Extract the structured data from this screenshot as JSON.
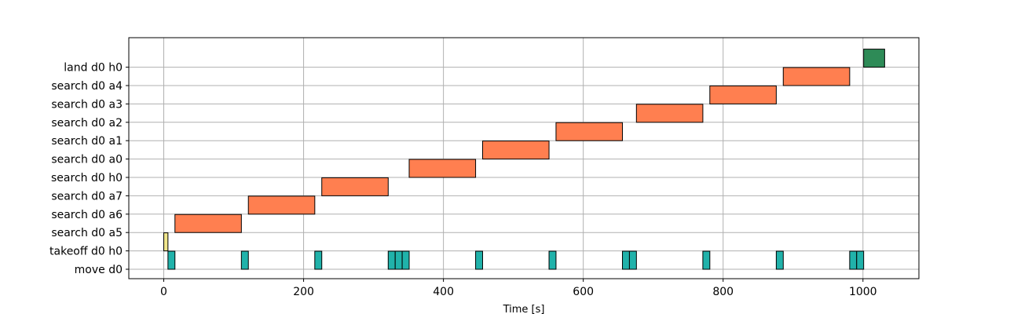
{
  "chart_data": {
    "type": "gantt",
    "title": "",
    "xlabel": "Time [s]",
    "ylabel": "",
    "xlim": [
      -50,
      1080
    ],
    "grid": true,
    "xticks": [
      0,
      200,
      400,
      600,
      800,
      1000
    ],
    "xtick_labels": [
      "0",
      "200",
      "400",
      "600",
      "800",
      "1000"
    ],
    "rows": [
      "move d0",
      "takeoff d0 h0",
      "search d0 a5",
      "search d0 a6",
      "search d0 a7",
      "search d0 h0",
      "search d0 a0",
      "search d0 a1",
      "search d0 a2",
      "search d0 a3",
      "search d0 a4",
      "land d0 h0"
    ],
    "colors": {
      "move": "#20b2aa",
      "takeoff": "#f0e68c",
      "search": "#ff7f50",
      "land": "#2e8b57"
    },
    "tasks": [
      {
        "row": "takeoff d0 h0",
        "start": 0,
        "end": 6,
        "kind": "takeoff"
      },
      {
        "row": "search d0 a5",
        "start": 16,
        "end": 111,
        "kind": "search"
      },
      {
        "row": "search d0 a6",
        "start": 121,
        "end": 216,
        "kind": "search"
      },
      {
        "row": "search d0 a7",
        "start": 226,
        "end": 321,
        "kind": "search"
      },
      {
        "row": "search d0 h0",
        "start": 351,
        "end": 446,
        "kind": "search"
      },
      {
        "row": "search d0 a0",
        "start": 456,
        "end": 551,
        "kind": "search"
      },
      {
        "row": "search d0 a1",
        "start": 561,
        "end": 656,
        "kind": "search"
      },
      {
        "row": "search d0 a2",
        "start": 676,
        "end": 771,
        "kind": "search"
      },
      {
        "row": "search d0 a3",
        "start": 781,
        "end": 876,
        "kind": "search"
      },
      {
        "row": "search d0 a4",
        "start": 886,
        "end": 981,
        "kind": "search"
      },
      {
        "row": "land d0 h0",
        "start": 1001,
        "end": 1031,
        "kind": "land"
      },
      {
        "row": "move d0",
        "start": 6,
        "end": 16,
        "kind": "move"
      },
      {
        "row": "move d0",
        "start": 111,
        "end": 121,
        "kind": "move"
      },
      {
        "row": "move d0",
        "start": 216,
        "end": 226,
        "kind": "move"
      },
      {
        "row": "move d0",
        "start": 321,
        "end": 331,
        "kind": "move"
      },
      {
        "row": "move d0",
        "start": 331,
        "end": 341,
        "kind": "move"
      },
      {
        "row": "move d0",
        "start": 341,
        "end": 351,
        "kind": "move"
      },
      {
        "row": "move d0",
        "start": 446,
        "end": 456,
        "kind": "move"
      },
      {
        "row": "move d0",
        "start": 551,
        "end": 561,
        "kind": "move"
      },
      {
        "row": "move d0",
        "start": 656,
        "end": 666,
        "kind": "move"
      },
      {
        "row": "move d0",
        "start": 666,
        "end": 676,
        "kind": "move"
      },
      {
        "row": "move d0",
        "start": 771,
        "end": 781,
        "kind": "move"
      },
      {
        "row": "move d0",
        "start": 876,
        "end": 886,
        "kind": "move"
      },
      {
        "row": "move d0",
        "start": 981,
        "end": 991,
        "kind": "move"
      },
      {
        "row": "move d0",
        "start": 991,
        "end": 1001,
        "kind": "move"
      }
    ]
  }
}
